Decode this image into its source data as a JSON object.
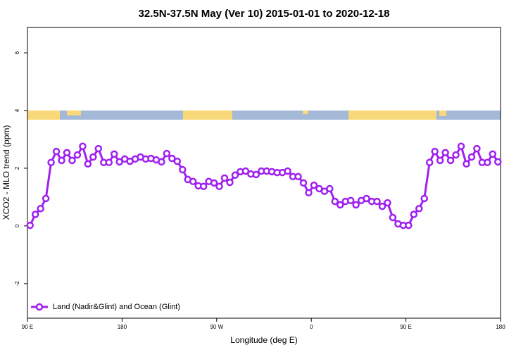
{
  "chart_data": {
    "type": "line",
    "title": "32.5N-37.5N May (Ver 10)   2015-01-01 to 2020-12-18",
    "x_label": "Longitude (deg E)",
    "y_label": "XCO2 - MLO trend (ppm)",
    "x": [
      92.5,
      97.5,
      102.5,
      107.5,
      112.5,
      117.5,
      122.5,
      127.5,
      132.5,
      137.5,
      142.5,
      147.5,
      152.5,
      157.5,
      162.5,
      167.5,
      172.5,
      177.5,
      182.5,
      187.5,
      192.5,
      197.5,
      202.5,
      207.5,
      212.5,
      217.5,
      222.5,
      227.5,
      232.5,
      237.5,
      242.5,
      247.5,
      252.5,
      257.5,
      262.5,
      267.5,
      272.5,
      277.5,
      282.5,
      287.5,
      292.5,
      297.5,
      302.5,
      307.5,
      312.5,
      317.5,
      322.5,
      327.5,
      332.5,
      337.5,
      342.5,
      347.5,
      352.5,
      357.5,
      362.5,
      367.5,
      372.5,
      377.5,
      382.5,
      387.5,
      392.5,
      397.5,
      402.5,
      407.5,
      412.5,
      417.5,
      422.5,
      427.5,
      432.5,
      437.5,
      442.5,
      447.5,
      452.5,
      457.5,
      462.5,
      467.5,
      472.5,
      477.5,
      482.5,
      487.5,
      492.5,
      497.5,
      502.5,
      507.5,
      512.5,
      517.5,
      522.5,
      527.5,
      532.5,
      537.5
    ],
    "series": [
      {
        "name": "Land (Nadir&Glint) and Ocean (Glint)",
        "color": "#a020f0",
        "values": [
          0.02,
          0.4,
          0.6,
          0.95,
          2.2,
          2.58,
          2.27,
          2.54,
          2.27,
          2.46,
          2.76,
          2.15,
          2.39,
          2.68,
          2.2,
          2.2,
          2.49,
          2.22,
          2.32,
          2.24,
          2.32,
          2.39,
          2.32,
          2.34,
          2.29,
          2.22,
          2.51,
          2.34,
          2.24,
          1.95,
          1.61,
          1.54,
          1.39,
          1.37,
          1.54,
          1.49,
          1.37,
          1.66,
          1.51,
          1.76,
          1.88,
          1.9,
          1.8,
          1.78,
          1.9,
          1.9,
          1.88,
          1.85,
          1.85,
          1.9,
          1.71,
          1.71,
          1.49,
          1.15,
          1.41,
          1.29,
          1.2,
          1.29,
          0.85,
          0.73,
          0.85,
          0.88,
          0.73,
          0.88,
          0.95,
          0.85,
          0.85,
          0.68,
          0.8,
          0.29,
          0.07,
          0.02,
          0.02,
          0.4,
          0.6,
          0.95,
          2.2,
          2.58,
          2.27,
          2.54,
          2.27,
          2.46,
          2.76,
          2.15,
          2.39,
          2.68,
          2.2,
          2.2,
          2.49,
          2.22
        ]
      }
    ],
    "xlim": [
      90,
      540
    ],
    "ylim": [
      -3.2,
      6.88
    ],
    "xticks": [
      {
        "value": 90,
        "label": "90 E"
      },
      180,
      {
        "value": 270,
        "label": "90 W"
      },
      {
        "value": 360,
        "label": "0"
      },
      {
        "value": 450,
        "label": "90 E"
      },
      {
        "value": 540,
        "label": "180"
      }
    ],
    "yticks": [
      -2,
      0,
      2,
      4,
      6
    ],
    "legend": "lower left"
  }
}
